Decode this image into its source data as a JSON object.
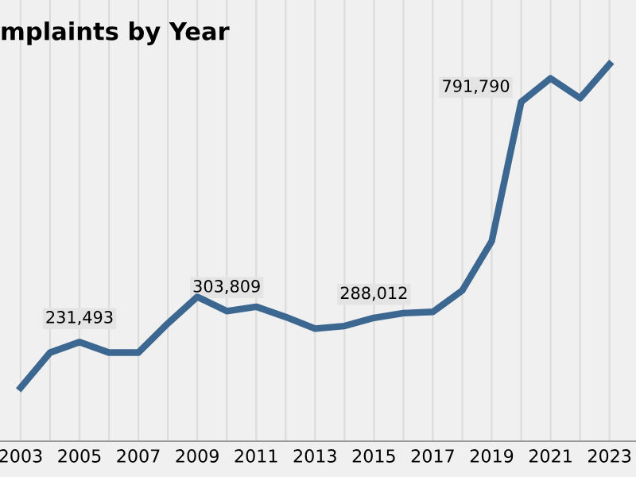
{
  "chart_data": {
    "type": "line",
    "title": "mplaints by Year",
    "x": [
      2003,
      2004,
      2005,
      2006,
      2007,
      2008,
      2009,
      2010,
      2011,
      2012,
      2013,
      2014,
      2015,
      2016,
      2017,
      2018,
      2019,
      2020,
      2021,
      2022,
      2023
    ],
    "series": [
      {
        "color": "#3b6790",
        "values": [
          125000,
          207000,
          231493,
          207000,
          207000,
          275000,
          337000,
          303809,
          314000,
          290000,
          263000,
          269000,
          288012,
          299000,
          302000,
          352000,
          467000,
          791790,
          847000,
          801000,
          880000
        ],
        "value_labels": [
          null,
          null,
          "231,493",
          null,
          null,
          null,
          null,
          "303,809",
          null,
          null,
          null,
          null,
          "288,012",
          null,
          null,
          null,
          null,
          "791,790",
          null,
          null,
          null
        ]
      }
    ],
    "xlim": [
      2002.3,
      2023.9
    ],
    "ylim": [
      0,
      1030000
    ],
    "xticks": [
      2003,
      {
        "value": 2004,
        "label": null
      },
      2005,
      {
        "value": 2006,
        "label": null
      },
      2007,
      {
        "value": 2008,
        "label": null
      },
      2009,
      {
        "value": 2010,
        "label": null
      },
      2011,
      {
        "value": 2012,
        "label": null
      },
      2013,
      {
        "value": 2014,
        "label": null
      },
      2015,
      {
        "value": 2016,
        "label": null
      },
      2017,
      {
        "value": 2018,
        "label": null
      },
      2019,
      {
        "value": 2020,
        "label": null
      },
      2021,
      {
        "value": 2022,
        "label": null
      },
      2023
    ],
    "grid": "x",
    "tick_labels": "x",
    "marker": "none",
    "line_style": "solid"
  }
}
